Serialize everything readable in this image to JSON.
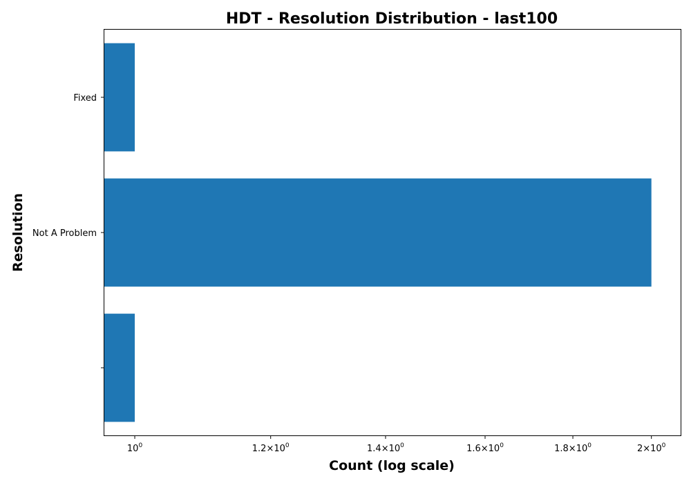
{
  "chart_data": {
    "type": "bar",
    "orientation": "horizontal",
    "title": "HDT - Resolution Distribution - last100",
    "xlabel": "Count (log scale)",
    "ylabel": "Resolution",
    "xscale": "log",
    "xlim": [
      0.96,
      2.08
    ],
    "categories": [
      "Fixed",
      "Not A Problem",
      ""
    ],
    "values": [
      1,
      2,
      1
    ],
    "bar_color": "#1f77b4",
    "x_ticks": [
      {
        "value": 1.0,
        "mantissa": "",
        "base": "10",
        "exp": "0"
      },
      {
        "value": 1.2,
        "mantissa": "1.2×",
        "base": "10",
        "exp": "0"
      },
      {
        "value": 1.4,
        "mantissa": "1.4×",
        "base": "10",
        "exp": "0"
      },
      {
        "value": 1.6,
        "mantissa": "1.6×",
        "base": "10",
        "exp": "0"
      },
      {
        "value": 1.8,
        "mantissa": "1.8×",
        "base": "10",
        "exp": "0"
      },
      {
        "value": 2.0,
        "mantissa": "2×",
        "base": "10",
        "exp": "0"
      }
    ]
  }
}
